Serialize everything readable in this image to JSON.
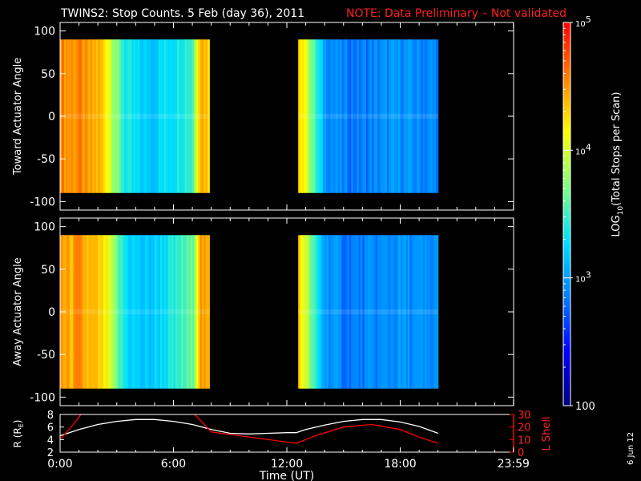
{
  "header": {
    "title": "TWINS2: Stop Counts.  5 Feb (day  36), 2011",
    "note": "NOTE: Data Preliminary – Not validated",
    "note_color": "#ff2020"
  },
  "side_date": "6 Jun 12",
  "colorbar": {
    "label": "LOG10(Total Stops per Scan)",
    "tick_labels": [
      "100",
      "10^3",
      "10^4",
      "10^5"
    ],
    "range": [
      100,
      100000
    ],
    "scale": "log",
    "colors": [
      "#00007f",
      "#0000ff",
      "#0080ff",
      "#00e0ff",
      "#80ff80",
      "#ffff00",
      "#ff8000",
      "#ff0000"
    ]
  },
  "chart_data": [
    {
      "type": "heatmap",
      "title": "",
      "ylabel": "Toward Actuator Angle",
      "xlabel": "",
      "xlim": [
        0,
        24
      ],
      "ylim": [
        -110,
        110
      ],
      "yticks": [
        -100,
        -50,
        0,
        50,
        100
      ],
      "value_scale": "log10 counts",
      "blocks": [
        {
          "t_start": 0.0,
          "t_end": 7.9,
          "angle_min": -90,
          "angle_max": 90,
          "profile": [
            [
              0.0,
              4.6
            ],
            [
              0.5,
              4.5
            ],
            [
              1.0,
              4.55
            ],
            [
              1.5,
              4.4
            ],
            [
              2.0,
              4.4
            ],
            [
              2.5,
              4.2
            ],
            [
              3.0,
              3.7
            ],
            [
              3.5,
              3.35
            ],
            [
              4.0,
              3.25
            ],
            [
              4.5,
              3.2
            ],
            [
              5.0,
              3.2
            ],
            [
              5.5,
              3.3
            ],
            [
              6.0,
              3.35
            ],
            [
              6.5,
              3.45
            ],
            [
              7.0,
              3.5
            ],
            [
              7.4,
              4.5
            ],
            [
              7.9,
              4.3
            ]
          ]
        },
        {
          "t_start": 12.6,
          "t_end": 20.0,
          "angle_min": -90,
          "angle_max": 90,
          "profile": [
            [
              12.6,
              4.4
            ],
            [
              13.0,
              4.1
            ],
            [
              13.4,
              3.6
            ],
            [
              14.0,
              3.0
            ],
            [
              15.0,
              2.85
            ],
            [
              16.0,
              2.85
            ],
            [
              17.0,
              2.9
            ],
            [
              18.0,
              2.95
            ],
            [
              19.0,
              2.9
            ],
            [
              20.0,
              2.9
            ]
          ]
        }
      ]
    },
    {
      "type": "heatmap",
      "title": "",
      "ylabel": "Away Actuator Angle",
      "xlabel": "",
      "xlim": [
        0,
        24
      ],
      "ylim": [
        -110,
        110
      ],
      "yticks": [
        -100,
        -50,
        0,
        50,
        100
      ],
      "value_scale": "log10 counts",
      "blocks": [
        {
          "t_start": 0.0,
          "t_end": 7.9,
          "angle_min": -90,
          "angle_max": 90,
          "profile": [
            [
              0.0,
              4.5
            ],
            [
              0.5,
              4.4
            ],
            [
              1.0,
              4.5
            ],
            [
              1.5,
              4.35
            ],
            [
              2.0,
              4.3
            ],
            [
              2.5,
              4.1
            ],
            [
              3.0,
              3.6
            ],
            [
              3.5,
              3.3
            ],
            [
              4.0,
              3.2
            ],
            [
              4.5,
              3.15
            ],
            [
              5.0,
              3.2
            ],
            [
              5.5,
              3.3
            ],
            [
              6.0,
              3.35
            ],
            [
              6.5,
              3.5
            ],
            [
              7.0,
              3.6
            ],
            [
              7.4,
              4.5
            ],
            [
              7.9,
              4.3
            ]
          ]
        },
        {
          "t_start": 12.6,
          "t_end": 20.0,
          "angle_min": -90,
          "angle_max": 90,
          "profile": [
            [
              12.6,
              4.3
            ],
            [
              13.0,
              4.0
            ],
            [
              13.4,
              3.5
            ],
            [
              14.0,
              3.0
            ],
            [
              15.0,
              2.85
            ],
            [
              16.0,
              2.85
            ],
            [
              17.0,
              2.9
            ],
            [
              18.0,
              2.95
            ],
            [
              19.0,
              2.9
            ],
            [
              20.0,
              2.9
            ]
          ]
        }
      ]
    },
    {
      "type": "line",
      "title": "",
      "xlabel": "Time (UT)",
      "xticks": [
        "0:00",
        "6:00",
        "12:00",
        "18:00",
        "23:59"
      ],
      "xlim": [
        0,
        24
      ],
      "ylabel_left": "R (RE)",
      "ylim_left": [
        2,
        8
      ],
      "yticks_left": [
        2,
        4,
        6,
        8
      ],
      "ylabel_right": "L Shell",
      "ylim_right": [
        0,
        30
      ],
      "yticks_right": [
        0,
        10,
        20,
        30
      ],
      "series": [
        {
          "axis": "left",
          "color": "#ffffff",
          "x": [
            0,
            1,
            2,
            3,
            4,
            5,
            6,
            7,
            8,
            9,
            10,
            11,
            12,
            12.5,
            13,
            14,
            15,
            16,
            17,
            18,
            19,
            20
          ],
          "y": [
            4.6,
            5.6,
            6.4,
            6.9,
            7.2,
            7.2,
            6.9,
            6.4,
            5.6,
            5.0,
            4.9,
            5.0,
            5.1,
            5.1,
            5.6,
            6.3,
            6.9,
            7.2,
            7.2,
            6.8,
            6.1,
            5.0
          ]
        },
        {
          "axis": "right",
          "color": "#ff0000",
          "x": [
            0,
            0.7,
            1.2,
            7.0,
            8.0,
            12.5,
            13.5,
            15.0,
            16.5,
            18.0,
            19.0,
            20.0
          ],
          "y": [
            10,
            22,
            32,
            32,
            16,
            7,
            13,
            20,
            22,
            18,
            12,
            7
          ]
        }
      ]
    }
  ]
}
